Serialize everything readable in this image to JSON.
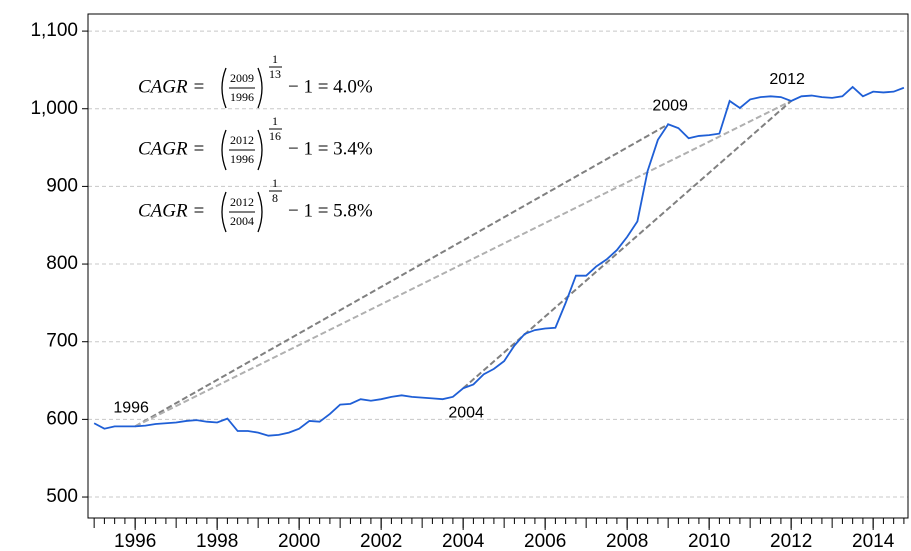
{
  "chart_data": {
    "type": "line",
    "color": "#1f5fd6",
    "x": [
      1995,
      1995.25,
      1995.5,
      1995.75,
      1996,
      1996.25,
      1996.5,
      1996.75,
      1997,
      1997.25,
      1997.5,
      1997.75,
      1998,
      1998.25,
      1998.5,
      1998.75,
      1999,
      1999.25,
      1999.5,
      1999.75,
      2000,
      2000.25,
      2000.5,
      2000.75,
      2001,
      2001.25,
      2001.5,
      2001.75,
      2002,
      2002.25,
      2002.5,
      2002.75,
      2003,
      2003.25,
      2003.5,
      2003.75,
      2004,
      2004.25,
      2004.5,
      2004.75,
      2005,
      2005.25,
      2005.5,
      2005.75,
      2006,
      2006.25,
      2006.5,
      2006.75,
      2007,
      2007.25,
      2007.5,
      2007.75,
      2008,
      2008.25,
      2008.5,
      2008.75,
      2009,
      2009.25,
      2009.5,
      2009.75,
      2010,
      2010.25,
      2010.5,
      2010.75,
      2011,
      2011.25,
      2011.5,
      2011.75,
      2012,
      2012.25,
      2012.5,
      2012.75,
      2013,
      2013.25,
      2013.5,
      2013.75,
      2014,
      2014.25,
      2014.5,
      2014.75
    ],
    "values": [
      595,
      588,
      591,
      591,
      591,
      592,
      594,
      595,
      596,
      598,
      599,
      597,
      596,
      601,
      585,
      585,
      583,
      579,
      580,
      583,
      588,
      598,
      597,
      607,
      619,
      620,
      626,
      624,
      626,
      629,
      631,
      629,
      628,
      627,
      626,
      629,
      640,
      645,
      658,
      665,
      675,
      695,
      710,
      715,
      717,
      718,
      750,
      785,
      785,
      797,
      806,
      818,
      835,
      855,
      920,
      960,
      980,
      975,
      962,
      965,
      966,
      968,
      1010,
      1001,
      1012,
      1015,
      1016,
      1015,
      1010,
      1016,
      1017,
      1015,
      1014,
      1016,
      1028,
      1016,
      1022,
      1021,
      1022,
      1027
    ],
    "xlim": [
      1994.85,
      2014.85
    ],
    "xticks": [
      1996,
      1998,
      2000,
      2002,
      2004,
      2006,
      2008,
      2010,
      2012,
      2014
    ],
    "ylim": [
      473,
      1122
    ],
    "yticks": [
      500,
      600,
      700,
      800,
      900,
      {
        "value": 1000,
        "label": "1,000"
      },
      {
        "value": 1100,
        "label": "1,100"
      }
    ],
    "grid": true,
    "segments": [
      {
        "from": 1996,
        "to": 2009,
        "color": "#808080"
      },
      {
        "from": 1996,
        "to": 2012,
        "color": "#b0b0b0"
      },
      {
        "from": 2004,
        "to": 2012,
        "color": "#808080"
      }
    ],
    "annotations": [
      "1996",
      "2009",
      "2012",
      "2004"
    ],
    "formulas": [
      {
        "lhs": "CAGR =",
        "numerator": "2009",
        "denominator": "1996",
        "exponent_numerator": "1",
        "exponent_denominator": "13",
        "rhs": "− 1 =  4.0%"
      },
      {
        "lhs": "CAGR =",
        "numerator": "2012",
        "denominator": "1996",
        "exponent_numerator": "1",
        "exponent_denominator": "16",
        "rhs": "− 1 =  3.4%"
      },
      {
        "lhs": "CAGR =",
        "numerator": "2012",
        "denominator": "2004",
        "exponent_numerator": "1",
        "exponent_denominator": "8",
        "rhs": "− 1 =  5.8%"
      }
    ]
  }
}
